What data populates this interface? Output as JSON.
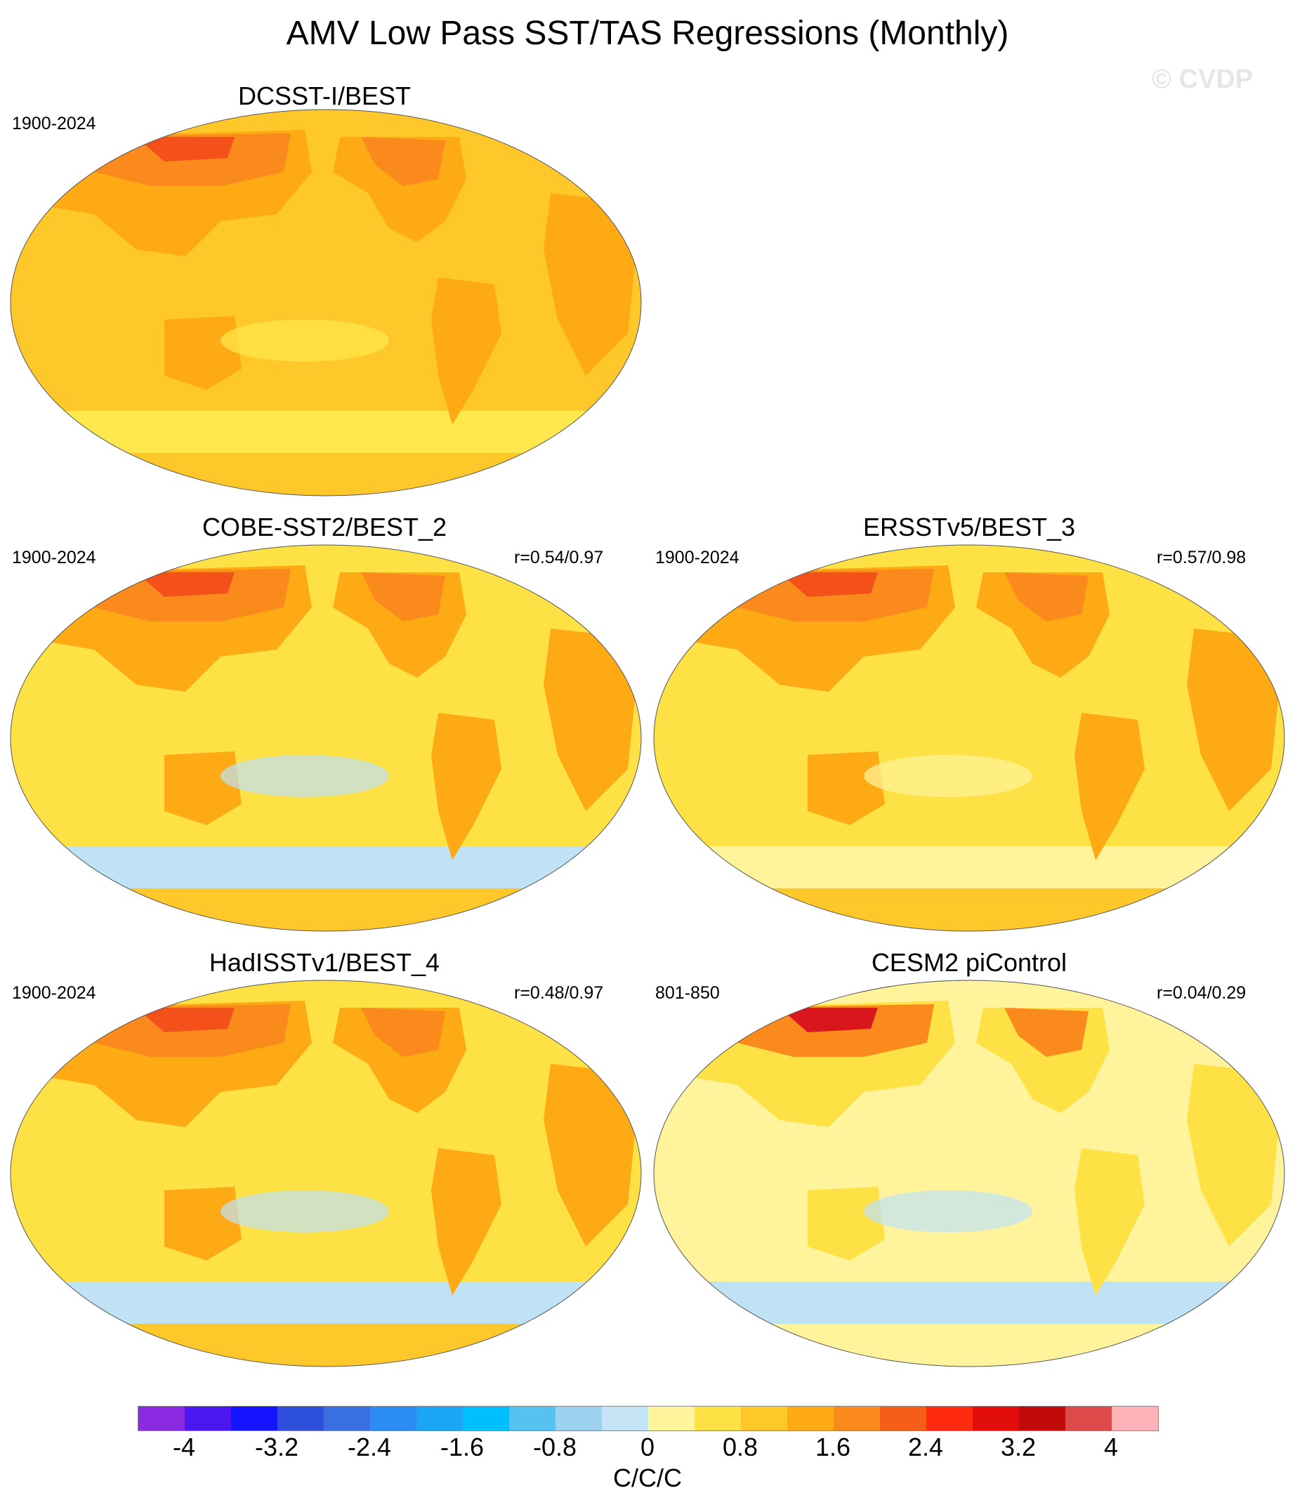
{
  "title": "AMV Low Pass SST/TAS Regressions (Monthly)",
  "watermark": "© CVDP",
  "panels": [
    {
      "title": "DCSST-I/BEST",
      "period": "1900-2024",
      "corr": "",
      "palette": {
        "base": "#fec82a",
        "ocean": "#fec82a",
        "warm1": "#fdaa15",
        "warm2": "#fb8a1d",
        "hot": "#f4501a",
        "cool": "#ffe84d"
      }
    },
    {
      "title": "COBE-SST2/BEST_2",
      "period": "1900-2024",
      "corr": "r=0.54/0.97",
      "palette": {
        "base": "#fec82a",
        "ocean": "#fee245",
        "warm1": "#fdaa15",
        "warm2": "#fb8a1d",
        "hot": "#f4501a",
        "cool": "#bfe2f5"
      }
    },
    {
      "title": "ERSSTv5/BEST_3",
      "period": "1900-2024",
      "corr": "r=0.57/0.98",
      "palette": {
        "base": "#fec82a",
        "ocean": "#fee245",
        "warm1": "#fdaa15",
        "warm2": "#fb8a1d",
        "hot": "#f4501a",
        "cool": "#fff39b"
      }
    },
    {
      "title": "HadISSTv1/BEST_4",
      "period": "1900-2024",
      "corr": "r=0.48/0.97",
      "palette": {
        "base": "#fec82a",
        "ocean": "#fee245",
        "warm1": "#fdaa15",
        "warm2": "#fb8a1d",
        "hot": "#f4501a",
        "cool": "#bfe2f5"
      }
    },
    {
      "title": "CESM2 piControl",
      "period": "801-850",
      "corr": "r=0.04/0.29",
      "palette": {
        "base": "#fff39b",
        "ocean": "#fff39b",
        "warm1": "#fee245",
        "warm2": "#fb8a1d",
        "hot": "#d8161b",
        "cool": "#bfe2f5"
      }
    }
  ],
  "colorbar": {
    "units": "C/C/C",
    "colors": [
      "#8a2be2",
      "#4b16f0",
      "#1414ff",
      "#2d4fd9",
      "#3a6fe0",
      "#2b8cf5",
      "#1aa5f5",
      "#00bfff",
      "#56c2f2",
      "#9dd2ee",
      "#c4e4f6",
      "#fff59c",
      "#fee245",
      "#fec82a",
      "#fdaa15",
      "#fb8a1d",
      "#f65d17",
      "#ff2a0f",
      "#e20e0e",
      "#c10a0a",
      "#dc4a4a",
      "#ffb2b8"
    ],
    "tick_labels": [
      "-4",
      "-3.2",
      "-2.4",
      "-1.6",
      "-0.8",
      "0",
      "0.8",
      "1.6",
      "2.4",
      "3.2",
      "4"
    ]
  }
}
